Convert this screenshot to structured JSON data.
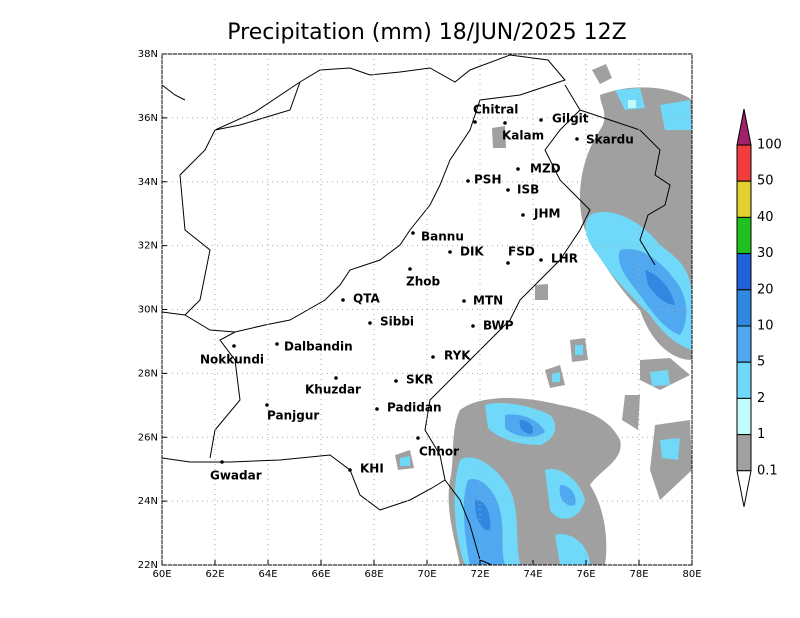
{
  "map": {
    "title": "Precipitation (mm) 18/JUN/2025 12Z",
    "lon_ticks": [
      {
        "value": 60,
        "label": "60E"
      },
      {
        "value": 62,
        "label": "62E"
      },
      {
        "value": 64,
        "label": "64E"
      },
      {
        "value": 66,
        "label": "66E"
      },
      {
        "value": 68,
        "label": "68E"
      },
      {
        "value": 70,
        "label": "70E"
      },
      {
        "value": 72,
        "label": "72E"
      },
      {
        "value": 74,
        "label": "74E"
      },
      {
        "value": 76,
        "label": "76E"
      },
      {
        "value": 78,
        "label": "78E"
      },
      {
        "value": 80,
        "label": "80E"
      }
    ],
    "lat_ticks": [
      {
        "value": 22,
        "label": "22N"
      },
      {
        "value": 24,
        "label": "24N"
      },
      {
        "value": 26,
        "label": "26N"
      },
      {
        "value": 28,
        "label": "28N"
      },
      {
        "value": 30,
        "label": "30N"
      },
      {
        "value": 32,
        "label": "32N"
      },
      {
        "value": 34,
        "label": "34N"
      },
      {
        "value": 36,
        "label": "36N"
      },
      {
        "value": 38,
        "label": "38N"
      }
    ],
    "cities": [
      "Chitral",
      "Kalam",
      "Gilgit",
      "Skardu",
      "MZD",
      "PSH",
      "ISB",
      "JHM",
      "Bannu",
      "DIK",
      "FSD",
      "LHR",
      "Zhob",
      "QTA",
      "MTN",
      "Sibbi",
      "BWP",
      "Dalbandin",
      "Nokkundi",
      "RYK",
      "Khuzdar",
      "SKR",
      "Padidan",
      "Panjgur",
      "Chhor",
      "KHI",
      "Gwadar"
    ],
    "colorbar": {
      "labels": [
        100,
        50,
        40,
        30,
        20,
        10,
        5,
        2,
        1,
        0.1
      ],
      "colors": [
        "#a0206a",
        "#f03c3c",
        "#e0d030",
        "#20c020",
        "#2060d8",
        "#3088e0",
        "#50a8f0",
        "#70d8f8",
        "#c0fcfc",
        "#a0a0a0",
        "#ffffff"
      ]
    }
  }
}
